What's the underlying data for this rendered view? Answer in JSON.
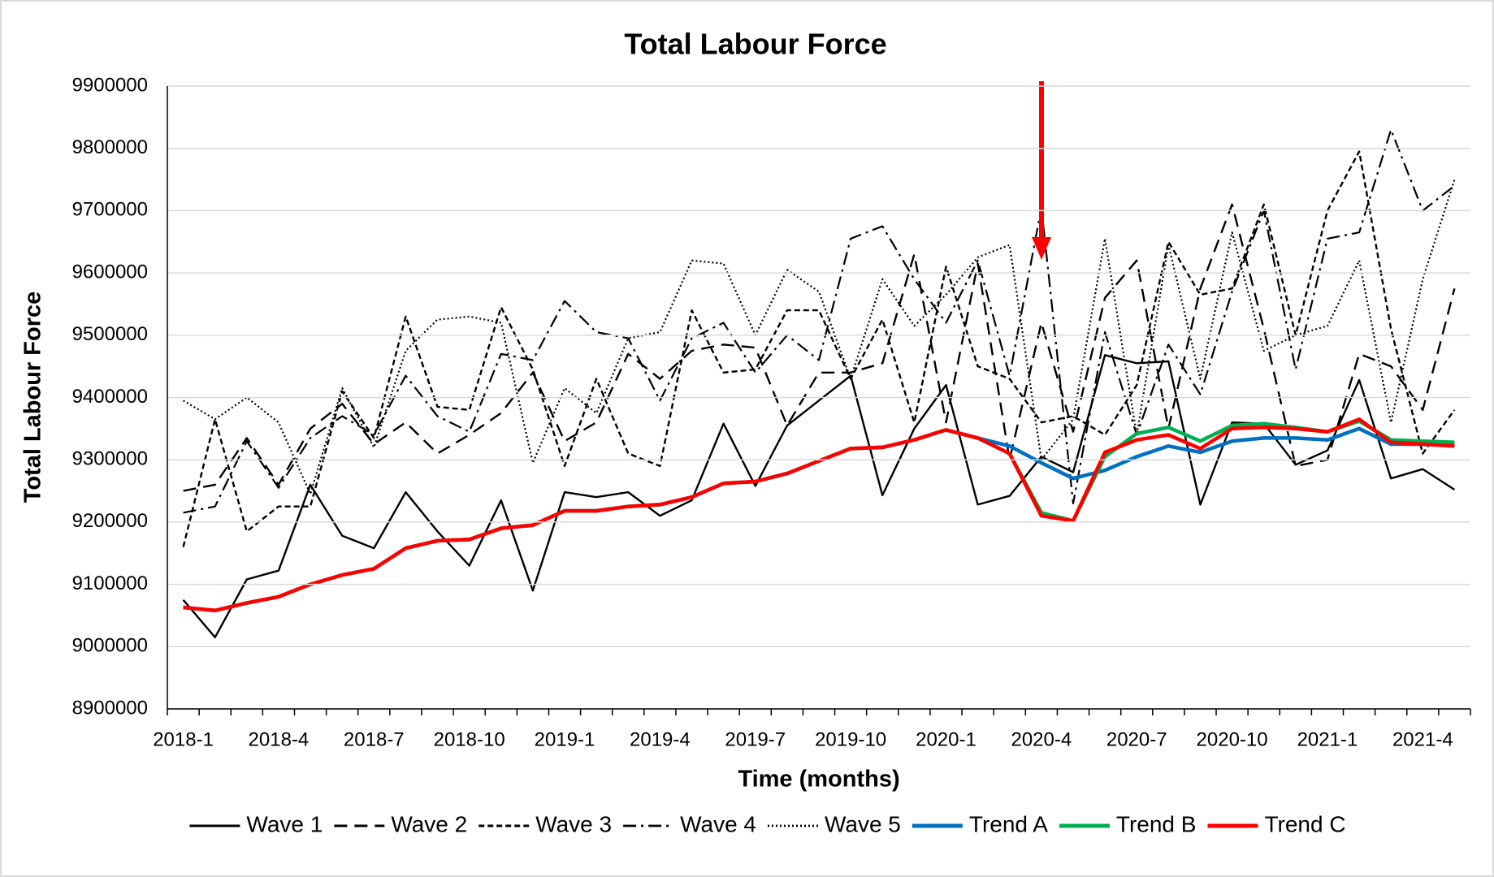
{
  "chart_data": {
    "type": "line",
    "title": "Total Labour Force",
    "x_label": "Time (months)",
    "y_label": "Total Labour Force",
    "categories": [
      "2018-1",
      null,
      null,
      "2018-4",
      null,
      null,
      "2018-7",
      null,
      null,
      "2018-10",
      null,
      null,
      "2019-1",
      null,
      null,
      "2019-4",
      null,
      null,
      "2019-7",
      null,
      null,
      "2019-10",
      null,
      null,
      "2020-1",
      null,
      null,
      "2020-4",
      null,
      null,
      "2020-7",
      null,
      null,
      "2020-10",
      null,
      null,
      "2021-1",
      null,
      null,
      "2021-4",
      null
    ],
    "ylim": [
      8900000,
      9900000
    ],
    "yticks": [
      8900000,
      9000000,
      9100000,
      9200000,
      9300000,
      9400000,
      9500000,
      9600000,
      9700000,
      9800000,
      9900000
    ],
    "grid": true,
    "legend": "bottom",
    "series": [
      {
        "name": "Wave 1",
        "color": "#000000",
        "line_style": "solid",
        "values": [
          9075000,
          9015000,
          9108000,
          9122000,
          9260000,
          9178000,
          9158000,
          9248000,
          9185000,
          9130000,
          9235000,
          9090000,
          9248000,
          9240000,
          9248000,
          9210000,
          9235000,
          9358000,
          9258000,
          9355000,
          9395000,
          9435000,
          9243000,
          9350000,
          9420000,
          9228000,
          9242000,
          9305000,
          9280000,
          9468000,
          9455000,
          9458000,
          9228000,
          9360000,
          9358000,
          9292000,
          9315000,
          9428000,
          9270000,
          9285000,
          9252000
        ]
      },
      {
        "name": "Wave 2",
        "color": "#000000",
        "line_style": "long-dash",
        "values": [
          9250000,
          9260000,
          9335000,
          9260000,
          9350000,
          9390000,
          9325000,
          9360000,
          9310000,
          9340000,
          9375000,
          9440000,
          9330000,
          9360000,
          9470000,
          9430000,
          9475000,
          9485000,
          9480000,
          9355000,
          9440000,
          9440000,
          9455000,
          9630000,
          9360000,
          9615000,
          9300000,
          9520000,
          9345000,
          9560000,
          9620000,
          9350000,
          9575000,
          9710000,
          9510000,
          9290000,
          9300000,
          9470000,
          9450000,
          9380000,
          9575000
        ]
      },
      {
        "name": "Wave 3",
        "color": "#000000",
        "line_style": "short-dash",
        "values": [
          9160000,
          9365000,
          9185000,
          9225000,
          9225000,
          9410000,
          9335000,
          9530000,
          9385000,
          9380000,
          9545000,
          9445000,
          9290000,
          9430000,
          9310000,
          9290000,
          9540000,
          9440000,
          9445000,
          9540000,
          9540000,
          9430000,
          9525000,
          9360000,
          9610000,
          9450000,
          9430000,
          9360000,
          9370000,
          9340000,
          9420000,
          9650000,
          9565000,
          9575000,
          9710000,
          9500000,
          9700000,
          9795000,
          9510000,
          9310000,
          9380000
        ]
      },
      {
        "name": "Wave 4",
        "color": "#000000",
        "line_style": "dash-dot",
        "values": [
          9215000,
          9225000,
          9330000,
          9255000,
          9335000,
          9370000,
          9340000,
          9435000,
          9370000,
          9345000,
          9470000,
          9460000,
          9555000,
          9505000,
          9495000,
          9395000,
          9495000,
          9520000,
          9440000,
          9500000,
          9460000,
          9655000,
          9675000,
          9590000,
          9520000,
          9620000,
          9435000,
          9705000,
          9230000,
          9505000,
          9340000,
          9485000,
          9405000,
          9570000,
          9700000,
          9445000,
          9655000,
          9665000,
          9830000,
          9700000,
          9740000
        ]
      },
      {
        "name": "Wave 5",
        "color": "#000000",
        "line_style": "dotted",
        "values": [
          9395000,
          9365000,
          9400000,
          9360000,
          9245000,
          9415000,
          9320000,
          9475000,
          9525000,
          9530000,
          9520000,
          9295000,
          9415000,
          9375000,
          9495000,
          9505000,
          9620000,
          9615000,
          9500000,
          9605000,
          9570000,
          9430000,
          9590000,
          9515000,
          9565000,
          9625000,
          9645000,
          9300000,
          9365000,
          9655000,
          9340000,
          9645000,
          9430000,
          9665000,
          9475000,
          9500000,
          9515000,
          9620000,
          9360000,
          9590000,
          9750000
        ]
      },
      {
        "name": "Trend A",
        "color": "#0070c0",
        "line_style": "thick",
        "values": [
          9063000,
          9058000,
          9070000,
          9080000,
          9100000,
          9115000,
          9125000,
          9158000,
          9170000,
          9172000,
          9190000,
          9195000,
          9218000,
          9218000,
          9225000,
          9228000,
          9240000,
          9262000,
          9265000,
          9278000,
          9298000,
          9318000,
          9320000,
          9332000,
          9348000,
          9335000,
          9322000,
          9295000,
          9270000,
          9283000,
          9305000,
          9322000,
          9312000,
          9330000,
          9335000,
          9335000,
          9332000,
          9350000,
          9325000,
          9325000,
          9325000
        ]
      },
      {
        "name": "Trend B",
        "color": "#00b050",
        "line_style": "thick",
        "values": [
          9063000,
          9058000,
          9070000,
          9080000,
          9100000,
          9115000,
          9125000,
          9158000,
          9170000,
          9172000,
          9190000,
          9195000,
          9218000,
          9218000,
          9225000,
          9228000,
          9240000,
          9262000,
          9265000,
          9278000,
          9298000,
          9318000,
          9320000,
          9332000,
          9348000,
          9335000,
          9310000,
          9215000,
          9202000,
          9305000,
          9342000,
          9352000,
          9330000,
          9355000,
          9358000,
          9352000,
          9345000,
          9362000,
          9332000,
          9330000,
          9328000
        ]
      },
      {
        "name": "Trend C",
        "color": "#ff0000",
        "line_style": "thick",
        "values": [
          9063000,
          9058000,
          9070000,
          9080000,
          9100000,
          9115000,
          9125000,
          9158000,
          9170000,
          9172000,
          9190000,
          9195000,
          9218000,
          9218000,
          9225000,
          9228000,
          9240000,
          9262000,
          9265000,
          9278000,
          9298000,
          9318000,
          9320000,
          9332000,
          9348000,
          9335000,
          9310000,
          9210000,
          9202000,
          9312000,
          9332000,
          9340000,
          9318000,
          9350000,
          9352000,
          9350000,
          9345000,
          9365000,
          9328000,
          9325000,
          9322000
        ]
      }
    ]
  }
}
